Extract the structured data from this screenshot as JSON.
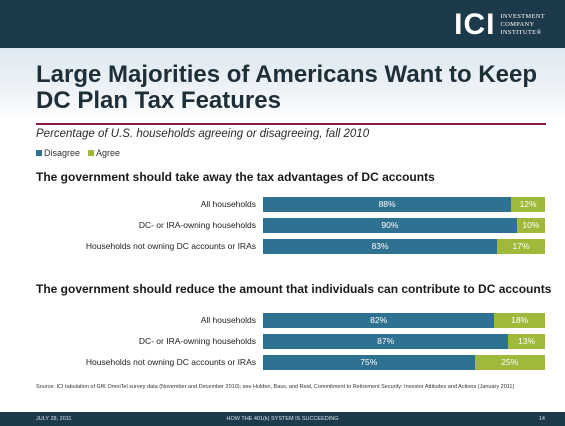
{
  "header": {
    "logo_mark": "ICI",
    "logo_lines": [
      "INVESTMENT",
      "COMPANY",
      "INSTITUTE®"
    ]
  },
  "title": "Large Majorities of Americans Want to Keep DC Plan Tax Features",
  "subtitle": "Percentage of U.S. households agreeing or disagreeing, fall 2010",
  "colors": {
    "disagree": "#2f7191",
    "agree": "#9fba3a",
    "header": "#1d3a4a",
    "rule": "#8a1c3a"
  },
  "chart_data": [
    {
      "type": "bar",
      "orientation": "horizontal",
      "stacked": true,
      "title": "The government should take away the tax advantages of DC accounts",
      "legend": "top-left",
      "categories": [
        "All households",
        "DC- or IRA-owning households",
        "Households not owning DC accounts or IRAs"
      ],
      "series": [
        {
          "name": "Disagree",
          "values": [
            88,
            90,
            83
          ]
        },
        {
          "name": "Agree",
          "values": [
            12,
            10,
            17
          ]
        }
      ],
      "value_labels": {
        "Disagree": [
          "88%",
          "90%",
          "83%"
        ],
        "Agree": [
          "12%",
          "10%",
          "17%"
        ]
      },
      "xlim": [
        0,
        100
      ]
    },
    {
      "type": "bar",
      "orientation": "horizontal",
      "stacked": true,
      "title": "The government should reduce the amount that individuals can contribute to DC accounts",
      "categories": [
        "All households",
        "DC- or IRA-owning households",
        "Households not owning DC accounts or IRAs"
      ],
      "series": [
        {
          "name": "Disagree",
          "values": [
            82,
            87,
            75
          ]
        },
        {
          "name": "Agree",
          "values": [
            18,
            13,
            25
          ]
        }
      ],
      "value_labels": {
        "Disagree": [
          "82%",
          "87%",
          "75%"
        ],
        "Agree": [
          "18%",
          "13%",
          "25%"
        ]
      },
      "xlim": [
        0,
        100
      ]
    }
  ],
  "source": "Source: ICI tabulation of GfK OmniTel survey data (November and December 2010); see Holden, Bass, and Reid, Commitment to Retirement Security: Investor Attitudes and Actions (January 2011)",
  "footer": {
    "date": "JULY 28, 2011",
    "center": "HOW THE 401(k) SYSTEM IS SUCCEEDING",
    "page": "14"
  }
}
